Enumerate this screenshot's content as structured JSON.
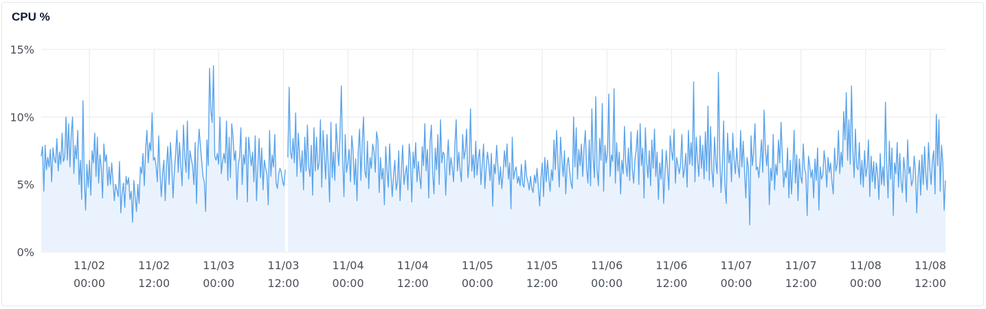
{
  "panel": {
    "title": "CPU %"
  },
  "colors": {
    "line": "#5ba4ea",
    "fill": "#eaf3fd",
    "grid": "#e6e8ec",
    "text": "#4a4f57"
  },
  "chart_data": {
    "type": "area",
    "title": "CPU %",
    "xlabel": "",
    "ylabel": "",
    "ylim": [
      0,
      15
    ],
    "yticks": [
      {
        "value": 0,
        "label": "0%"
      },
      {
        "value": 5,
        "label": "5%"
      },
      {
        "value": 10,
        "label": "10%"
      },
      {
        "value": 15,
        "label": "15%"
      }
    ],
    "x_range": [
      "11/01 16:30",
      "11/08 14:50"
    ],
    "xticks": [
      {
        "date": "11/02",
        "time": "00:00"
      },
      {
        "date": "11/02",
        "time": "12:00"
      },
      {
        "date": "11/03",
        "time": "00:00"
      },
      {
        "date": "11/03",
        "time": "12:00"
      },
      {
        "date": "11/04",
        "time": "00:00"
      },
      {
        "date": "11/04",
        "time": "12:00"
      },
      {
        "date": "11/05",
        "time": "00:00"
      },
      {
        "date": "11/05",
        "time": "12:00"
      },
      {
        "date": "11/06",
        "time": "00:00"
      },
      {
        "date": "11/06",
        "time": "12:00"
      },
      {
        "date": "11/07",
        "time": "00:00"
      },
      {
        "date": "11/07",
        "time": "12:00"
      },
      {
        "date": "11/08",
        "time": "00:00"
      },
      {
        "date": "11/08",
        "time": "12:00"
      }
    ],
    "grid": true,
    "legend": "none",
    "gap": {
      "from": "11/02 20:45",
      "to": "11/02 21:00"
    },
    "series": [
      {
        "sample_interval": "15m",
        "values": [
          7.1,
          7.8,
          4.5,
          7.9,
          6.1,
          7.0,
          6.3,
          7.6,
          5.2,
          7.7,
          6.9,
          6.6,
          8.4,
          6.0,
          7.4,
          6.5,
          8.8,
          6.7,
          7.0,
          10.0,
          6.8,
          9.5,
          6.3,
          8.7,
          10.0,
          5.8,
          7.9,
          6.9,
          9.0,
          5.0,
          6.8,
          3.9,
          11.2,
          5.5,
          3.1,
          6.5,
          4.8,
          6.8,
          4.2,
          7.5,
          6.6,
          8.8,
          5.6,
          8.5,
          5.1,
          7.2,
          6.3,
          4.0,
          8.0,
          6.7,
          7.2,
          4.9,
          6.3,
          5.0,
          6.6,
          5.3,
          3.8,
          5.0,
          4.6,
          4.1,
          6.7,
          2.9,
          4.4,
          5.1,
          3.3,
          5.6,
          5.0,
          5.5,
          3.9,
          4.5,
          2.2,
          5.3,
          4.1,
          3.0,
          5.0,
          3.6,
          6.3,
          5.8,
          7.3,
          4.9,
          7.6,
          9.0,
          6.6,
          8.1,
          7.5,
          10.3,
          6.8,
          7.0,
          6.4,
          5.2,
          8.6,
          6.0,
          4.1,
          5.8,
          6.8,
          3.8,
          6.4,
          7.8,
          5.0,
          8.1,
          6.6,
          4.0,
          5.9,
          7.3,
          9.0,
          5.9,
          8.1,
          6.4,
          4.9,
          9.4,
          7.1,
          5.9,
          9.7,
          5.4,
          7.5,
          6.9,
          6.4,
          5.0,
          8.1,
          3.6,
          7.4,
          9.1,
          7.9,
          6.7,
          5.6,
          5.2,
          3.0,
          8.3,
          6.4,
          13.6,
          10.5,
          9.6,
          13.8,
          7.1,
          6.8,
          7.3,
          6.5,
          10.0,
          5.8,
          6.7,
          7.3,
          6.6,
          9.7,
          5.3,
          8.5,
          5.5,
          9.5,
          8.5,
          6.8,
          7.5,
          3.9,
          6.5,
          7.0,
          9.2,
          5.0,
          7.2,
          6.5,
          8.5,
          3.7,
          8.5,
          7.3,
          6.4,
          7.4,
          5.2,
          8.6,
          3.8,
          6.4,
          8.4,
          5.5,
          7.7,
          4.6,
          6.8,
          6.2,
          5.8,
          3.5,
          9.0,
          5.6,
          7.2,
          6.3,
          8.7,
          5.1,
          4.7,
          5.8,
          6.2,
          5.9,
          5.2,
          4.9,
          6.1,
          null,
          7.0,
          12.2,
          7.4,
          6.9,
          8.4,
          6.6,
          10.3,
          5.6,
          8.8,
          7.2,
          5.9,
          7.5,
          4.6,
          8.5,
          6.0,
          9.4,
          6.3,
          5.6,
          7.9,
          4.2,
          9.2,
          6.0,
          8.5,
          6.1,
          6.6,
          9.8,
          4.8,
          9.0,
          7.2,
          5.4,
          8.7,
          6.4,
          3.7,
          9.6,
          5.5,
          7.4,
          5.3,
          9.5,
          7.8,
          6.4,
          8.8,
          12.3,
          7.0,
          4.1,
          8.7,
          5.9,
          6.6,
          7.6,
          5.2,
          8.6,
          7.5,
          5.0,
          6.9,
          3.8,
          7.6,
          9.1,
          5.3,
          8.1,
          10.0,
          6.0,
          5.5,
          8.2,
          4.7,
          7.0,
          6.2,
          8.0,
          7.5,
          5.9,
          8.9,
          8.3,
          4.4,
          7.0,
          5.4,
          6.2,
          3.5,
          7.8,
          6.1,
          4.8,
          8.0,
          5.8,
          4.1,
          5.7,
          6.8,
          4.6,
          5.2,
          7.5,
          3.8,
          6.1,
          7.9,
          5.0,
          5.8,
          6.4,
          4.6,
          8.0,
          6.9,
          3.7,
          7.4,
          6.2,
          8.1,
          5.2,
          6.7,
          5.6,
          4.7,
          7.8,
          6.4,
          9.5,
          6.0,
          7.6,
          4.0,
          8.2,
          9.4,
          5.9,
          4.3,
          7.7,
          6.1,
          8.7,
          5.0,
          9.8,
          6.6,
          7.4,
          7.2,
          4.2,
          6.8,
          8.3,
          5.7,
          7.0,
          6.3,
          5.2,
          7.8,
          9.8,
          6.0,
          7.4,
          6.1,
          5.2,
          8.7,
          6.9,
          7.5,
          9.1,
          5.5,
          6.6,
          10.6,
          6.0,
          7.2,
          5.5,
          8.2,
          5.7,
          6.9,
          7.6,
          5.0,
          6.5,
          8.0,
          4.7,
          6.2,
          7.4,
          6.6,
          5.3,
          7.3,
          3.4,
          6.5,
          5.8,
          7.9,
          6.4,
          5.0,
          6.3,
          4.7,
          5.9,
          7.5,
          6.3,
          8.0,
          5.4,
          6.6,
          3.2,
          8.5,
          5.4,
          6.0,
          6.3,
          5.1,
          5.6,
          4.9,
          6.5,
          5.0,
          4.8,
          6.8,
          5.6,
          5.2,
          4.6,
          5.6,
          4.7,
          4.4,
          5.7,
          5.1,
          6.2,
          4.8,
          3.4,
          5.5,
          6.6,
          4.1,
          7.0,
          5.2,
          6.8,
          5.5,
          4.5,
          6.1,
          5.3,
          8.3,
          6.1,
          9.0,
          6.7,
          4.8,
          8.5,
          6.9,
          5.6,
          7.5,
          4.3,
          6.5,
          7.0,
          6.0,
          5.1,
          4.7,
          10.0,
          6.3,
          9.2,
          5.4,
          7.6,
          6.4,
          8.0,
          5.6,
          7.7,
          9.0,
          6.2,
          5.1,
          8.3,
          4.9,
          10.6,
          7.0,
          5.5,
          11.5,
          6.1,
          4.9,
          8.4,
          6.8,
          11.0,
          4.5,
          7.9,
          6.6,
          7.4,
          11.7,
          5.6,
          7.2,
          6.7,
          12.1,
          5.1,
          8.1,
          6.0,
          7.4,
          4.3,
          6.8,
          5.8,
          9.3,
          6.6,
          5.6,
          7.7,
          5.3,
          8.9,
          6.2,
          5.1,
          6.8,
          7.6,
          9.0,
          5.0,
          9.5,
          6.4,
          7.7,
          4.0,
          9.2,
          6.7,
          5.5,
          7.5,
          4.9,
          8.3,
          6.2,
          9.1,
          5.6,
          7.4,
          3.9,
          6.6,
          5.4,
          7.6,
          3.6,
          5.8,
          7.5,
          6.1,
          4.6,
          8.6,
          7.5,
          6.8,
          9.1,
          5.1,
          7.0,
          6.4,
          5.8,
          6.6,
          8.7,
          5.5,
          6.1,
          7.3,
          4.8,
          9.0,
          6.5,
          8.1,
          6.4,
          12.6,
          5.2,
          8.5,
          6.8,
          5.6,
          8.6,
          6.2,
          7.9,
          5.4,
          8.9,
          6.0,
          10.8,
          5.3,
          9.3,
          6.1,
          4.8,
          8.5,
          6.7,
          5.8,
          13.3,
          7.2,
          4.4,
          6.4,
          9.7,
          5.0,
          3.6,
          8.8,
          6.6,
          7.5,
          5.2,
          8.8,
          6.9,
          5.8,
          7.7,
          6.4,
          5.5,
          9.0,
          6.3,
          8.2,
          6.0,
          4.0,
          7.0,
          6.2,
          2.0,
          8.6,
          6.4,
          7.4,
          9.5,
          6.1,
          6.3,
          5.5,
          6.8,
          8.3,
          5.9,
          10.5,
          7.6,
          6.4,
          7.9,
          3.5,
          6.2,
          5.3,
          8.7,
          4.6,
          6.5,
          5.7,
          8.3,
          6.6,
          9.6,
          7.1,
          4.8,
          6.0,
          5.5,
          7.7,
          4.0,
          6.8,
          4.3,
          6.2,
          9.0,
          5.1,
          7.2,
          3.8,
          6.9,
          5.6,
          5.1,
          8.0,
          6.2,
          5.8,
          2.7,
          7.1,
          6.4,
          5.5,
          6.1,
          4.0,
          6.9,
          5.3,
          7.7,
          3.1,
          6.3,
          5.4,
          5.7,
          7.5,
          6.6,
          4.8,
          7.0,
          5.9,
          6.6,
          5.2,
          4.3,
          7.7,
          6.0,
          6.5,
          9.0,
          5.8,
          7.4,
          6.3,
          10.4,
          8.3,
          11.8,
          6.8,
          9.8,
          6.5,
          12.3,
          7.6,
          5.5,
          9.1,
          6.3,
          6.1,
          8.1,
          5.0,
          6.8,
          4.8,
          7.5,
          5.6,
          6.3,
          8.3,
          4.1,
          7.1,
          5.2,
          6.7,
          4.7,
          6.6,
          5.8,
          3.9,
          7.3,
          5.0,
          6.3,
          4.9,
          11.1,
          6.5,
          4.0,
          8.2,
          5.4,
          7.7,
          2.7,
          6.6,
          5.8,
          8.1,
          4.8,
          7.3,
          5.2,
          4.4,
          7.0,
          6.0,
          3.7,
          8.3,
          5.8,
          6.3,
          4.9,
          5.3,
          7.1,
          6.0,
          2.9,
          5.5,
          6.8,
          4.2,
          7.2,
          5.0,
          7.8,
          5.7,
          4.6,
          8.1,
          6.2,
          5.0,
          6.8,
          7.5,
          4.3,
          10.2,
          6.4,
          9.8,
          4.5,
          7.9,
          6.6,
          3.1,
          5.3
        ]
      }
    ]
  }
}
